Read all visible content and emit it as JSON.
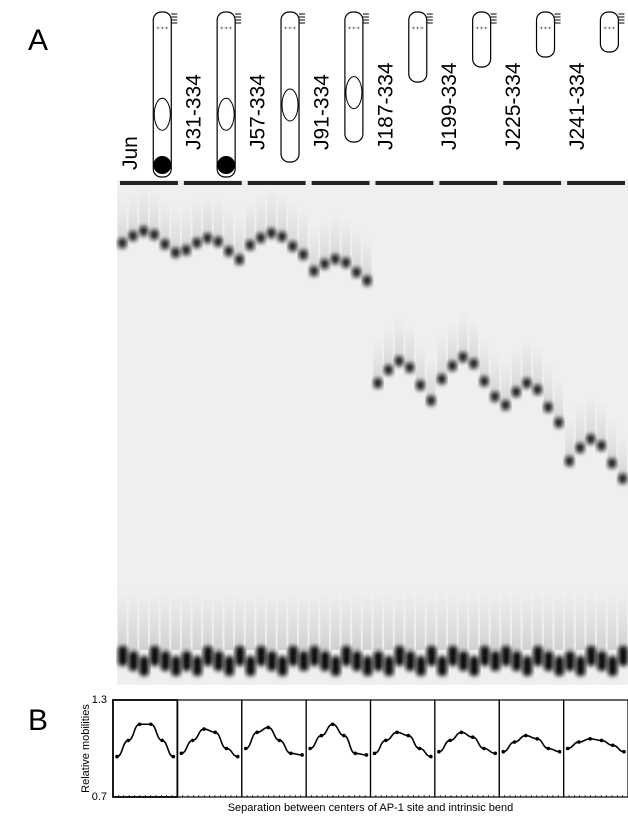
{
  "panel_a": {
    "label": "A",
    "lanes": [
      "Jun",
      "J31-334",
      "J57-334",
      "J91-334",
      "J187-334",
      "J199-334",
      "J225-334",
      "J241-334"
    ]
  },
  "chart_data": {
    "type": "line",
    "label": "B",
    "ylabel": "Relative mobilities",
    "xlabel": "Separation between centers of AP-1 site and intrinsic bend",
    "ylim": [
      0.7,
      1.3
    ],
    "yticks": [
      1.3,
      0.7
    ],
    "color": "#000000",
    "series": [
      {
        "values": [
          0.95,
          1.05,
          1.15,
          1.15,
          1.05,
          0.95
        ]
      },
      {
        "values": [
          0.97,
          1.05,
          1.12,
          1.1,
          1.0,
          0.95
        ]
      },
      {
        "values": [
          1.0,
          1.1,
          1.13,
          1.05,
          0.97,
          0.96
        ]
      },
      {
        "values": [
          1.0,
          1.08,
          1.15,
          1.08,
          0.97,
          0.96
        ]
      },
      {
        "values": [
          0.97,
          1.05,
          1.1,
          1.08,
          1.0,
          0.95
        ]
      },
      {
        "values": [
          0.98,
          1.05,
          1.1,
          1.07,
          1.0,
          0.97
        ]
      },
      {
        "values": [
          0.98,
          1.04,
          1.08,
          1.06,
          1.0,
          0.98
        ]
      },
      {
        "values": [
          1.0,
          1.04,
          1.06,
          1.05,
          1.02,
          0.98
        ]
      }
    ]
  }
}
